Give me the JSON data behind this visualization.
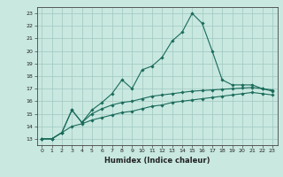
{
  "xlabel": "Humidex (Indice chaleur)",
  "xlim": [
    -0.5,
    23.5
  ],
  "ylim": [
    12.5,
    23.5
  ],
  "yticks": [
    13,
    14,
    15,
    16,
    17,
    18,
    19,
    20,
    21,
    22,
    23
  ],
  "xticks": [
    0,
    1,
    2,
    3,
    4,
    5,
    6,
    7,
    8,
    9,
    10,
    11,
    12,
    13,
    14,
    15,
    16,
    17,
    18,
    19,
    20,
    21,
    22,
    23
  ],
  "bg_color": "#c8e8e0",
  "line_color": "#1a6b5a",
  "grid_color": "#a0c8c0",
  "line1_x": [
    0,
    1,
    2,
    3,
    4,
    5,
    6,
    7,
    8,
    9,
    10,
    11,
    12,
    13,
    14,
    15,
    16,
    17,
    18,
    19,
    20,
    21,
    22,
    23
  ],
  "line1_y": [
    13.0,
    13.0,
    13.5,
    15.3,
    14.3,
    15.3,
    15.9,
    16.6,
    17.7,
    17.0,
    18.5,
    18.8,
    19.5,
    20.8,
    21.5,
    23.0,
    22.2,
    20.0,
    17.7,
    17.3,
    17.3,
    17.3,
    17.0,
    16.8
  ],
  "line2_x": [
    0,
    1,
    2,
    3,
    4,
    5,
    6,
    7,
    8,
    9,
    10,
    11,
    12,
    13,
    14,
    15,
    16,
    17,
    18,
    19,
    20,
    21,
    22,
    23
  ],
  "line2_y": [
    13.0,
    13.0,
    13.5,
    15.3,
    14.3,
    15.0,
    15.4,
    15.7,
    15.9,
    16.0,
    16.2,
    16.4,
    16.5,
    16.6,
    16.7,
    16.8,
    16.85,
    16.9,
    16.95,
    17.0,
    17.05,
    17.1,
    17.0,
    16.9
  ],
  "line3_x": [
    0,
    1,
    2,
    3,
    4,
    5,
    6,
    7,
    8,
    9,
    10,
    11,
    12,
    13,
    14,
    15,
    16,
    17,
    18,
    19,
    20,
    21,
    22,
    23
  ],
  "line3_y": [
    13.0,
    13.0,
    13.5,
    14.0,
    14.2,
    14.5,
    14.7,
    14.9,
    15.1,
    15.2,
    15.4,
    15.6,
    15.7,
    15.9,
    16.0,
    16.1,
    16.2,
    16.3,
    16.4,
    16.5,
    16.6,
    16.7,
    16.6,
    16.5
  ]
}
